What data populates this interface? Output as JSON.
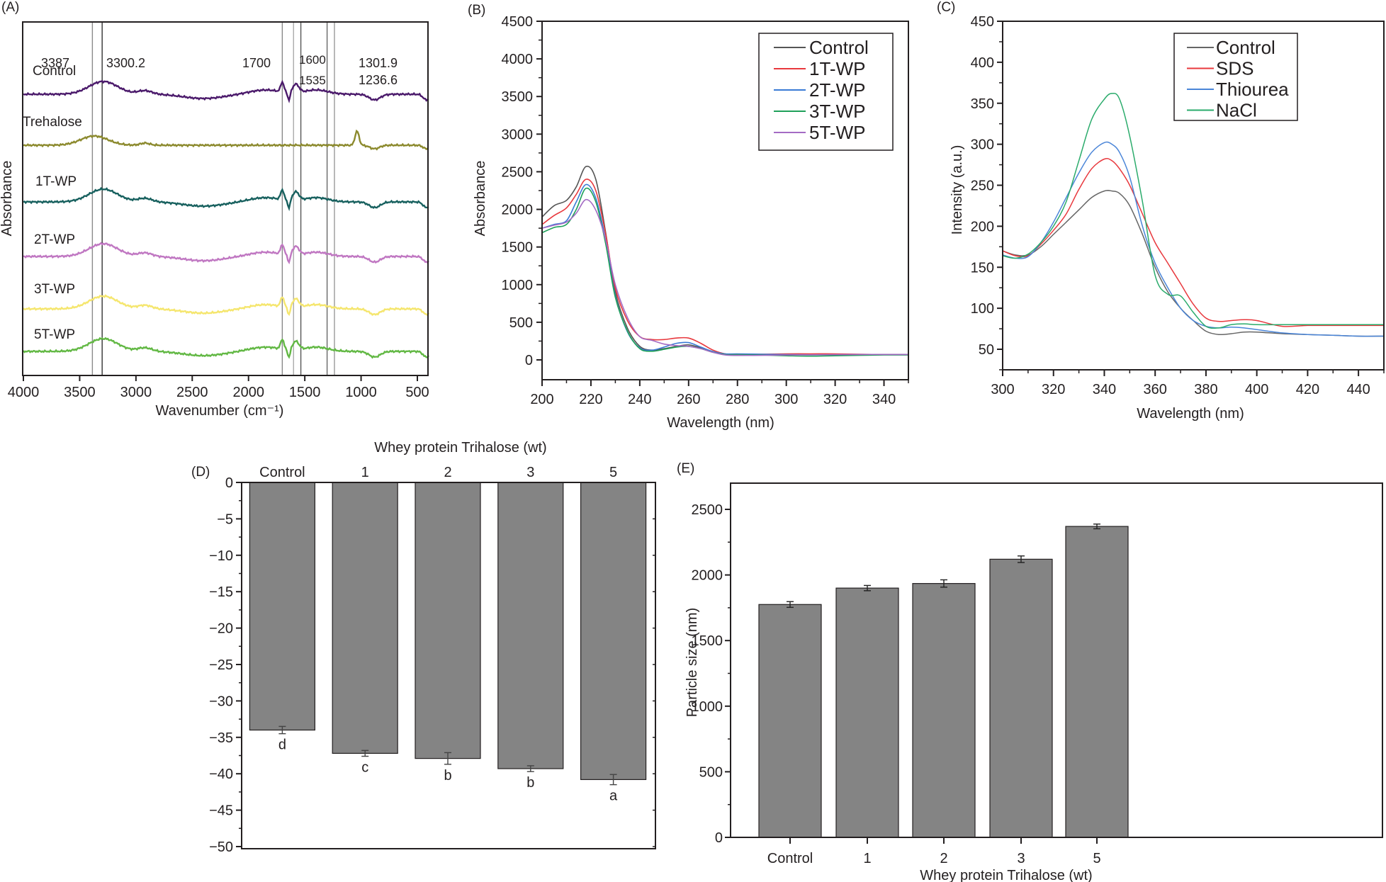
{
  "chart_data": [
    {
      "panel": "(A)",
      "type": "line",
      "title": "",
      "xlabel": "Wavenumber (cm⁻¹)",
      "ylabel": "Absorbance",
      "xlim": [
        4000,
        400
      ],
      "x_reversed": true,
      "xticks": [
        4000,
        3500,
        3000,
        2500,
        2000,
        1500,
        1000,
        500
      ],
      "stacked_offset": true,
      "reference_lines": [
        {
          "x": 3387,
          "label": "3387"
        },
        {
          "x": 3300.2,
          "label": "3300.2"
        },
        {
          "x": 1700,
          "label": "1700"
        },
        {
          "x": 1600,
          "label": "1600"
        },
        {
          "x": 1535,
          "label": "1535"
        },
        {
          "x": 1301.9,
          "label": "1301.9"
        },
        {
          "x": 1236.6,
          "label": "1236.6"
        }
      ],
      "series": [
        {
          "name": "Control",
          "color": "#4b1a6b",
          "peaks": [
            3300,
            1700,
            1600,
            1535
          ]
        },
        {
          "name": "Trehalose",
          "color": "#8c8a2e",
          "peaks": [
            3387,
            1036
          ]
        },
        {
          "name": "1T-WP",
          "color": "#17605e",
          "peaks": [
            3300,
            1700,
            1600,
            1535
          ]
        },
        {
          "name": "2T-WP",
          "color": "#c077c2",
          "peaks": [
            3300,
            1700,
            1600,
            1535
          ]
        },
        {
          "name": "3T-WP",
          "color": "#f5e66e",
          "peaks": [
            3300,
            1700,
            1600,
            1535
          ]
        },
        {
          "name": "5T-WP",
          "color": "#62b844",
          "peaks": [
            3300,
            1700,
            1600,
            1535
          ]
        }
      ]
    },
    {
      "panel": "(B)",
      "type": "line",
      "xlabel": "Wavelength (nm)",
      "ylabel": "Absorbance",
      "xlim": [
        200,
        350
      ],
      "ylim": [
        -230,
        4500
      ],
      "xticks": [
        200,
        220,
        240,
        260,
        280,
        300,
        320,
        340
      ],
      "yticks": [
        0,
        500,
        1000,
        1500,
        2000,
        2500,
        3000,
        3500,
        4000,
        4500
      ],
      "legend": "top-right",
      "x": [
        200,
        205,
        210,
        214,
        218,
        222,
        226,
        230,
        235,
        240,
        245,
        250,
        255,
        260,
        265,
        270,
        275,
        280,
        290,
        300,
        310,
        320,
        330,
        340,
        350
      ],
      "series": [
        {
          "name": "Control",
          "color": "#555555",
          "values": [
            1900,
            2050,
            2120,
            2300,
            2570,
            2400,
            1700,
            900,
            420,
            180,
            130,
            150,
            180,
            200,
            160,
            110,
            70,
            60,
            70,
            70,
            70,
            70,
            70,
            70,
            70
          ]
        },
        {
          "name": "1T-WP",
          "color": "#e8383d",
          "values": [
            1800,
            1920,
            2020,
            2200,
            2400,
            2250,
            1680,
            950,
            520,
            310,
            270,
            270,
            290,
            290,
            220,
            130,
            80,
            75,
            75,
            80,
            80,
            80,
            75,
            72,
            72
          ]
        },
        {
          "name": "2T-WP",
          "color": "#3a7bd5",
          "values": [
            1750,
            1800,
            1850,
            2100,
            2330,
            2150,
            1600,
            850,
            370,
            160,
            130,
            170,
            220,
            230,
            170,
            110,
            80,
            80,
            75,
            70,
            68,
            68,
            70,
            70,
            70
          ]
        },
        {
          "name": "3T-WP",
          "color": "#1fa05a",
          "values": [
            1690,
            1760,
            1800,
            2000,
            2280,
            2100,
            1550,
            830,
            380,
            150,
            115,
            140,
            170,
            180,
            150,
            100,
            70,
            70,
            65,
            55,
            50,
            55,
            60,
            65,
            65
          ]
        },
        {
          "name": "5T-WP",
          "color": "#a46bc4",
          "values": [
            1750,
            1790,
            1830,
            1950,
            2130,
            1990,
            1600,
            1000,
            560,
            310,
            260,
            210,
            190,
            180,
            150,
            100,
            65,
            60,
            60,
            65,
            68,
            70,
            72,
            72,
            72
          ]
        }
      ]
    },
    {
      "panel": "(C)",
      "type": "line",
      "xlabel": "Wavelength (nm)",
      "ylabel": "Intensity (a.u.)",
      "xlim": [
        300,
        450
      ],
      "ylim": [
        25,
        450
      ],
      "xticks": [
        300,
        320,
        340,
        360,
        380,
        400,
        420,
        440
      ],
      "yticks": [
        50,
        100,
        150,
        200,
        250,
        300,
        350,
        400,
        450
      ],
      "legend": "top-right",
      "x": [
        300,
        305,
        310,
        315,
        320,
        325,
        330,
        335,
        340,
        343,
        346,
        350,
        355,
        360,
        365,
        370,
        375,
        380,
        385,
        390,
        395,
        400,
        410,
        420,
        430,
        440,
        450
      ],
      "series": [
        {
          "name": "Control",
          "color": "#666666",
          "values": [
            170,
            165,
            165,
            175,
            190,
            205,
            220,
            235,
            243,
            243,
            240,
            225,
            190,
            150,
            120,
            100,
            85,
            72,
            68,
            69,
            71,
            71,
            69,
            68,
            67,
            66,
            66
          ]
        },
        {
          "name": "SDS",
          "color": "#e8383d",
          "values": [
            170,
            164,
            164,
            178,
            195,
            215,
            245,
            270,
            282,
            280,
            270,
            250,
            215,
            180,
            155,
            130,
            105,
            88,
            84,
            85,
            86,
            85,
            78,
            79,
            79,
            79,
            79
          ]
        },
        {
          "name": "Thiourea",
          "color": "#4a85d8",
          "values": [
            165,
            161,
            163,
            180,
            205,
            235,
            265,
            290,
            302,
            300,
            290,
            260,
            200,
            155,
            125,
            100,
            85,
            78,
            76,
            77,
            76,
            74,
            70,
            68,
            67,
            66,
            66
          ]
        },
        {
          "name": "NaCl",
          "color": "#2aab6b",
          "values": [
            164,
            161,
            166,
            180,
            200,
            230,
            280,
            330,
            355,
            362,
            355,
            310,
            230,
            140,
            117,
            115,
            95,
            78,
            76,
            80,
            81,
            80,
            80,
            80,
            80,
            80,
            80
          ]
        }
      ]
    },
    {
      "panel": "(D)",
      "type": "bar",
      "title": "Whey protein Trihalose (wt)",
      "xlabel": "",
      "ylabel": "",
      "categories": [
        "Control",
        "1",
        "2",
        "3",
        "5"
      ],
      "values": [
        -34.0,
        -37.2,
        -37.9,
        -39.3,
        -40.8
      ],
      "errors": [
        0.5,
        0.4,
        0.8,
        0.4,
        0.7
      ],
      "significance": [
        "d",
        "c",
        "b",
        "b",
        "a"
      ],
      "ylim": [
        -50,
        0
      ],
      "yticks": [
        0,
        -5,
        -10,
        -15,
        -20,
        -25,
        -30,
        -35,
        -40,
        -45,
        -50
      ],
      "ytick_labels": [
        "0",
        "−5",
        "−10",
        "−15",
        "−20",
        "−25",
        "−30",
        "−35",
        "−40",
        "−45",
        "−50"
      ],
      "bar_color": "#848484"
    },
    {
      "panel": "(E)",
      "type": "bar",
      "xlabel": "Whey protein Trihalose (wt)",
      "ylabel": "Particle size (nm)",
      "categories": [
        "Control",
        "1",
        "2",
        "3",
        "5"
      ],
      "values": [
        1775,
        1900,
        1935,
        2120,
        2370
      ],
      "errors": [
        22,
        20,
        28,
        25,
        18
      ],
      "ylim": [
        0,
        2700
      ],
      "yticks": [
        0,
        500,
        1000,
        1500,
        2000,
        2500
      ],
      "bar_color": "#848484"
    }
  ]
}
